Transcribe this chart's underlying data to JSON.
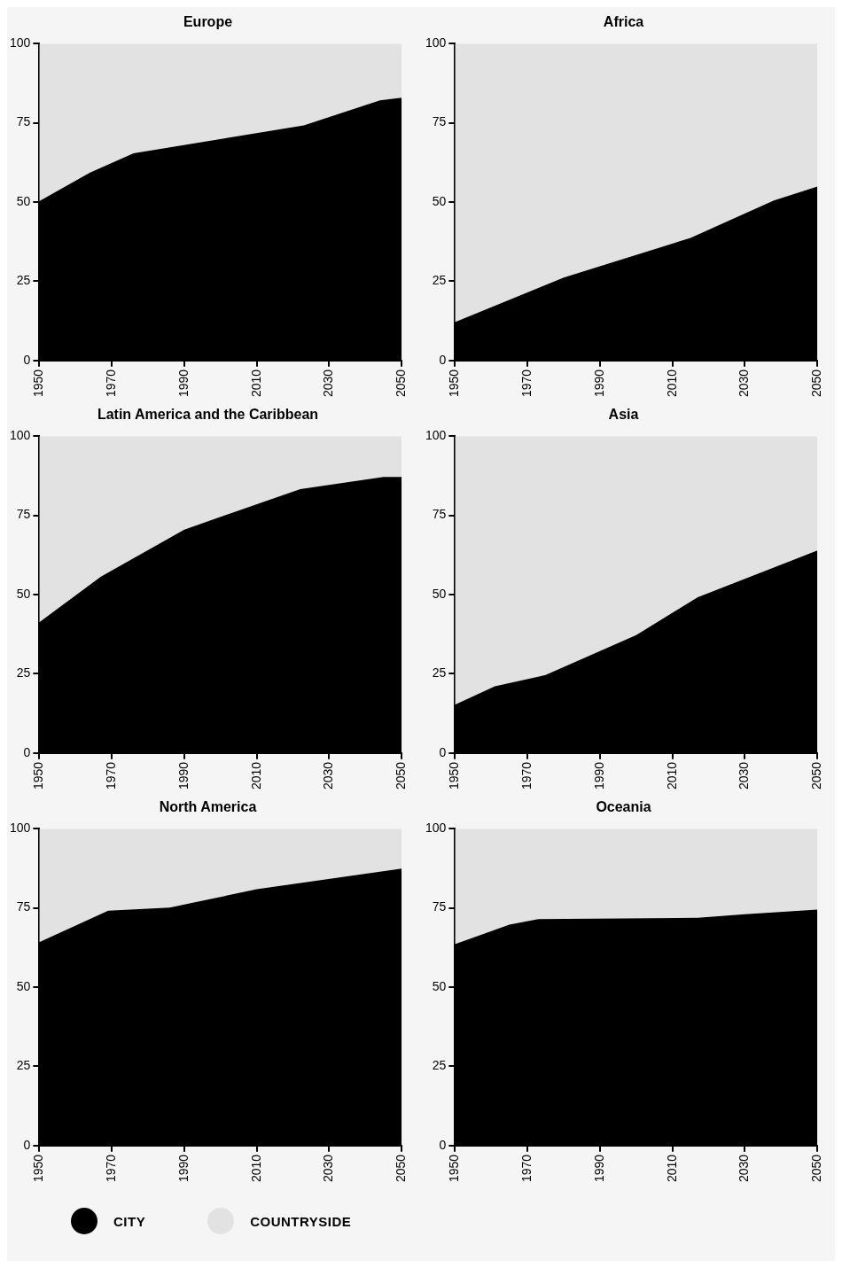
{
  "chart_data": [
    {
      "type": "area",
      "title": "Europe",
      "stacked": true,
      "xlim": [
        1950,
        2050
      ],
      "xticks": [
        1950,
        1970,
        1990,
        2010,
        2030,
        2050
      ],
      "ylim": [
        0,
        100
      ],
      "yticks": [
        0,
        25,
        50,
        75,
        100
      ],
      "legend": "bottom left",
      "series": [
        {
          "name": "CITY",
          "color": "#000000",
          "x": [
            1950,
            1964,
            1976,
            2023,
            2044,
            2050
          ],
          "values": [
            50.3,
            59.3,
            65.4,
            74.2,
            82.1,
            82.9
          ]
        },
        {
          "name": "COUNTRYSIDE",
          "color": "#e2e2e2",
          "x": [
            1950,
            1964,
            1976,
            2023,
            2044,
            2050
          ],
          "values": [
            49.7,
            40.7,
            34.6,
            25.8,
            17.9,
            17.1
          ]
        }
      ]
    },
    {
      "type": "area",
      "title": "Africa",
      "stacked": true,
      "xlim": [
        1950,
        2050
      ],
      "xticks": [
        1950,
        1970,
        1990,
        2010,
        2030,
        2050
      ],
      "ylim": [
        0,
        100
      ],
      "yticks": [
        0,
        25,
        50,
        75,
        100
      ],
      "series": [
        {
          "color": "#000000",
          "x": [
            1950,
            1980,
            2015,
            2038,
            2050
          ],
          "values": [
            12.1,
            26.2,
            38.7,
            50.5,
            54.9
          ]
        },
        {
          "color": "#e2e2e2",
          "x": [
            1950,
            1980,
            2015,
            2038,
            2050
          ],
          "values": [
            87.9,
            73.8,
            61.3,
            49.5,
            45.1
          ]
        }
      ]
    },
    {
      "type": "area",
      "title": "Latin America and the Caribbean",
      "stacked": true,
      "xlim": [
        1950,
        2050
      ],
      "xticks": [
        1950,
        1970,
        1990,
        2010,
        2030,
        2050
      ],
      "ylim": [
        0,
        100
      ],
      "yticks": [
        0,
        25,
        50,
        75,
        100
      ],
      "series": [
        {
          "color": "#000000",
          "x": [
            1950,
            1967,
            1990,
            2022,
            2045,
            2050
          ],
          "values": [
            41.3,
            55.7,
            70.5,
            83.3,
            87.1,
            87.1
          ]
        },
        {
          "color": "#e2e2e2",
          "x": [
            1950,
            1967,
            1990,
            2022,
            2045,
            2050
          ],
          "values": [
            58.7,
            44.3,
            29.5,
            16.7,
            12.9,
            12.9
          ]
        }
      ]
    },
    {
      "type": "area",
      "title": "Asia",
      "stacked": true,
      "xlim": [
        1950,
        2050
      ],
      "xticks": [
        1950,
        1970,
        1990,
        2010,
        2030,
        2050
      ],
      "ylim": [
        0,
        100
      ],
      "yticks": [
        0,
        25,
        50,
        75,
        100
      ],
      "series": [
        {
          "color": "#000000",
          "x": [
            1950,
            1961,
            1975,
            2000,
            2017,
            2050
          ],
          "values": [
            15.3,
            21.1,
            24.6,
            37.2,
            49.2,
            63.9
          ]
        },
        {
          "color": "#e2e2e2",
          "x": [
            1950,
            1961,
            1975,
            2000,
            2017,
            2050
          ],
          "values": [
            84.7,
            78.9,
            75.4,
            62.8,
            50.8,
            36.1
          ]
        }
      ]
    },
    {
      "type": "area",
      "title": "North America",
      "stacked": true,
      "xlim": [
        1950,
        2050
      ],
      "xticks": [
        1950,
        1970,
        1990,
        2010,
        2030,
        2050
      ],
      "ylim": [
        0,
        100
      ],
      "yticks": [
        0,
        25,
        50,
        75,
        100
      ],
      "series": [
        {
          "color": "#000000",
          "x": [
            1950,
            1969,
            1986,
            2010,
            2050
          ],
          "values": [
            64.2,
            74.1,
            75.1,
            80.9,
            87.4
          ]
        },
        {
          "color": "#e2e2e2",
          "x": [
            1950,
            1969,
            1986,
            2010,
            2050
          ],
          "values": [
            35.8,
            25.9,
            24.9,
            19.1,
            12.6
          ]
        }
      ]
    },
    {
      "type": "area",
      "title": "Oceania",
      "stacked": true,
      "xlim": [
        1950,
        2050
      ],
      "xticks": [
        1950,
        1970,
        1990,
        2010,
        2030,
        2050
      ],
      "ylim": [
        0,
        100
      ],
      "yticks": [
        0,
        25,
        50,
        75,
        100
      ],
      "series": [
        {
          "color": "#000000",
          "x": [
            1950,
            1965,
            1973,
            2017,
            2030,
            2050
          ],
          "values": [
            63.6,
            69.7,
            71.5,
            71.9,
            73.0,
            74.5
          ]
        },
        {
          "color": "#e2e2e2",
          "x": [
            1950,
            1965,
            1973,
            2017,
            2030,
            2050
          ],
          "values": [
            36.4,
            30.3,
            28.5,
            28.1,
            27.0,
            25.5
          ]
        }
      ]
    }
  ]
}
